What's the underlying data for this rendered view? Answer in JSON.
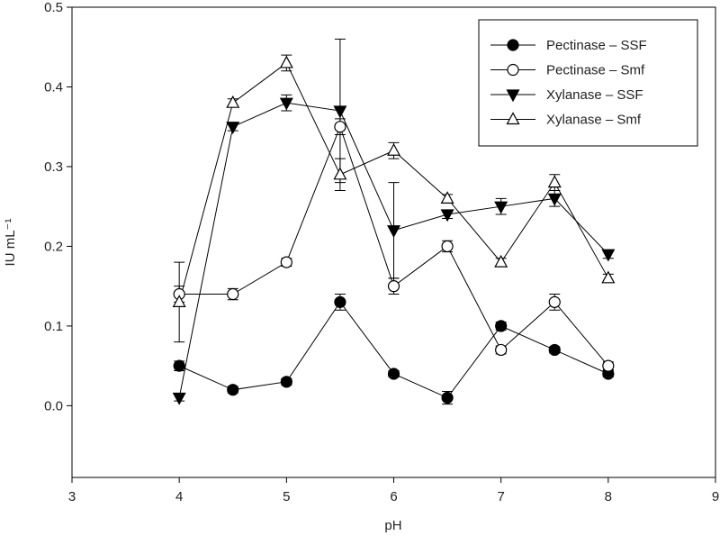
{
  "chart_data": {
    "type": "line",
    "x_label": "pH",
    "y_label": "IU mL⁻¹",
    "x": [
      4,
      4.5,
      5,
      5.5,
      6,
      6.5,
      7,
      7.5,
      8
    ],
    "xlim": [
      3,
      9
    ],
    "xticks": [
      3,
      4,
      5,
      6,
      7,
      8,
      9
    ],
    "ylim": [
      -0.09,
      0.5
    ],
    "yticks": [
      {
        "value": 0,
        "label": "0.0"
      },
      0.1,
      0.2,
      0.3,
      0.4,
      0.5
    ],
    "legend": "top-right",
    "series": [
      {
        "name": "Pectinase – SSF",
        "color": "#000000",
        "marker": "circle",
        "filled": true,
        "values": [
          0.05,
          0.02,
          0.03,
          0.13,
          0.04,
          0.01,
          0.1,
          0.07,
          0.04
        ],
        "errors": [
          0.006,
          0.004,
          0.004,
          0.01,
          0.004,
          0.008,
          0.005,
          0.004,
          0.004
        ]
      },
      {
        "name": "Pectinase – Smf",
        "color": "#000000",
        "marker": "circle",
        "filled": false,
        "values": [
          0.14,
          0.14,
          0.18,
          0.35,
          0.15,
          0.2,
          0.07,
          0.13,
          0.05
        ],
        "errors": [
          0.01,
          0.007,
          0.005,
          0.01,
          0.01,
          0.007,
          0.005,
          0.01,
          0.005
        ]
      },
      {
        "name": "Xylanase – SSF",
        "color": "#000000",
        "marker": "triangle-down",
        "filled": true,
        "values": [
          0.01,
          0.35,
          0.38,
          0.37,
          0.22,
          0.24,
          0.25,
          0.26,
          0.19
        ],
        "errors": [
          0.004,
          0.005,
          0.01,
          0.09,
          0.06,
          0.005,
          0.01,
          0.01,
          0.005
        ]
      },
      {
        "name": "Xylanase – Smf",
        "color": "#000000",
        "marker": "triangle-up",
        "filled": false,
        "values": [
          0.13,
          0.38,
          0.43,
          0.29,
          0.32,
          0.26,
          0.18,
          0.28,
          0.16
        ],
        "errors": [
          0.05,
          0.005,
          0.01,
          0.02,
          0.01,
          0.005,
          0.005,
          0.01,
          0.005
        ]
      }
    ]
  }
}
